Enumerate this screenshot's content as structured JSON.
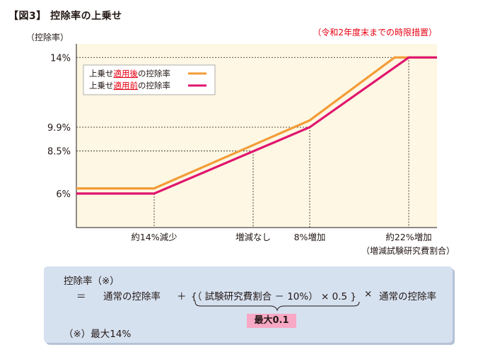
{
  "figure": {
    "title": "【図3】 控除率の上乗せ"
  },
  "chart_data": {
    "type": "line",
    "title": "",
    "ylabel": "（控除率）",
    "xlabel": "（増減試験研究費割合）",
    "period_note": "（令和2年度末までの時限措置）",
    "y_ticks": [
      {
        "label": "14%",
        "value": 14
      },
      {
        "label": "9.9%",
        "value": 9.9
      },
      {
        "label": "8.5%",
        "value": 8.5
      },
      {
        "label": "6%",
        "value": 6
      }
    ],
    "x_ticks": [
      {
        "label": "約14%減少",
        "value": -14
      },
      {
        "label": "増減なし",
        "value": 0
      },
      {
        "label": "8%増加",
        "value": 8
      },
      {
        "label": "約22%増加",
        "value": 22
      }
    ],
    "x_range": [
      -25,
      26
    ],
    "y_range": [
      4,
      14.8
    ],
    "series": [
      {
        "legend_label": "上乗せ適用後の控除率",
        "legend_parts": [
          "上乗せ",
          "適用後",
          "の控除率"
        ],
        "color": "#f39c36",
        "points": [
          [
            -25,
            6.3
          ],
          [
            -14,
            6.3
          ],
          [
            8,
            10.3
          ],
          [
            20,
            14
          ],
          [
            26,
            14
          ]
        ]
      },
      {
        "legend_label": "上乗せ適用前の控除率",
        "legend_parts": [
          "上乗せ",
          "適用前",
          "の控除率"
        ],
        "color": "#e0156e",
        "points": [
          [
            -25,
            6
          ],
          [
            -14,
            6
          ],
          [
            8,
            9.9
          ],
          [
            22,
            14
          ],
          [
            26,
            14
          ]
        ]
      }
    ],
    "grid": false,
    "legend_position": "top-left"
  },
  "formula": {
    "name": "控除率（※）",
    "equals": "＝",
    "base": "通常の控除率",
    "plus": "＋",
    "expression": "{（ 試験研究費割合 － 10%） × 0.5 }",
    "times": "×",
    "base2": "通常の控除率",
    "cap": "最大0.1",
    "note": "（※）最大14%"
  },
  "colors": {
    "plot_bg": "#fdf7e3",
    "box_bg": "#d6e1f0",
    "badge_bg": "#f7a8c4",
    "note_red": "#e60012"
  }
}
